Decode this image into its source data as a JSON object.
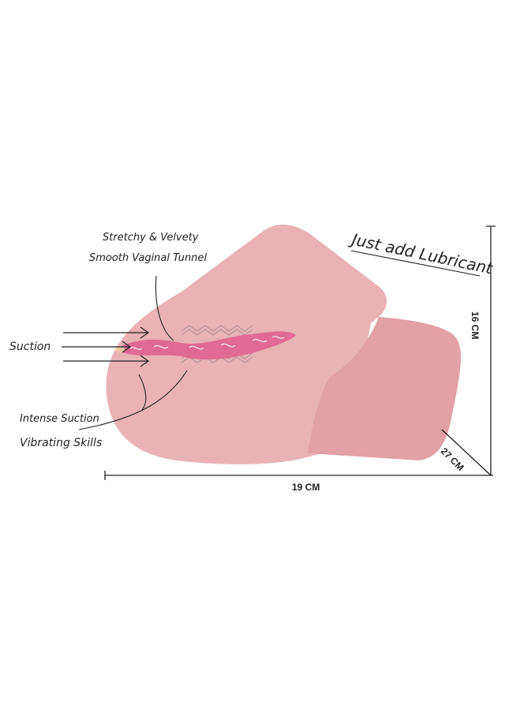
{
  "labels": {
    "tunnel_line1": "Stretchy & Velvety",
    "tunnel_line2": "Smooth Vaginal Tunnel",
    "suction": "Suction",
    "intense_suction": "Intense Suction",
    "vibrating": "Vibrating Skills",
    "lubricant": "Just add Lubricant"
  },
  "dimensions": {
    "height": "16 CM",
    "width": "19 CM",
    "depth": "27 CM"
  },
  "colors": {
    "body": "#e8b2b7",
    "lobe": "#e2a0a7",
    "tunnel": "#e06a94",
    "line": "#222222"
  }
}
